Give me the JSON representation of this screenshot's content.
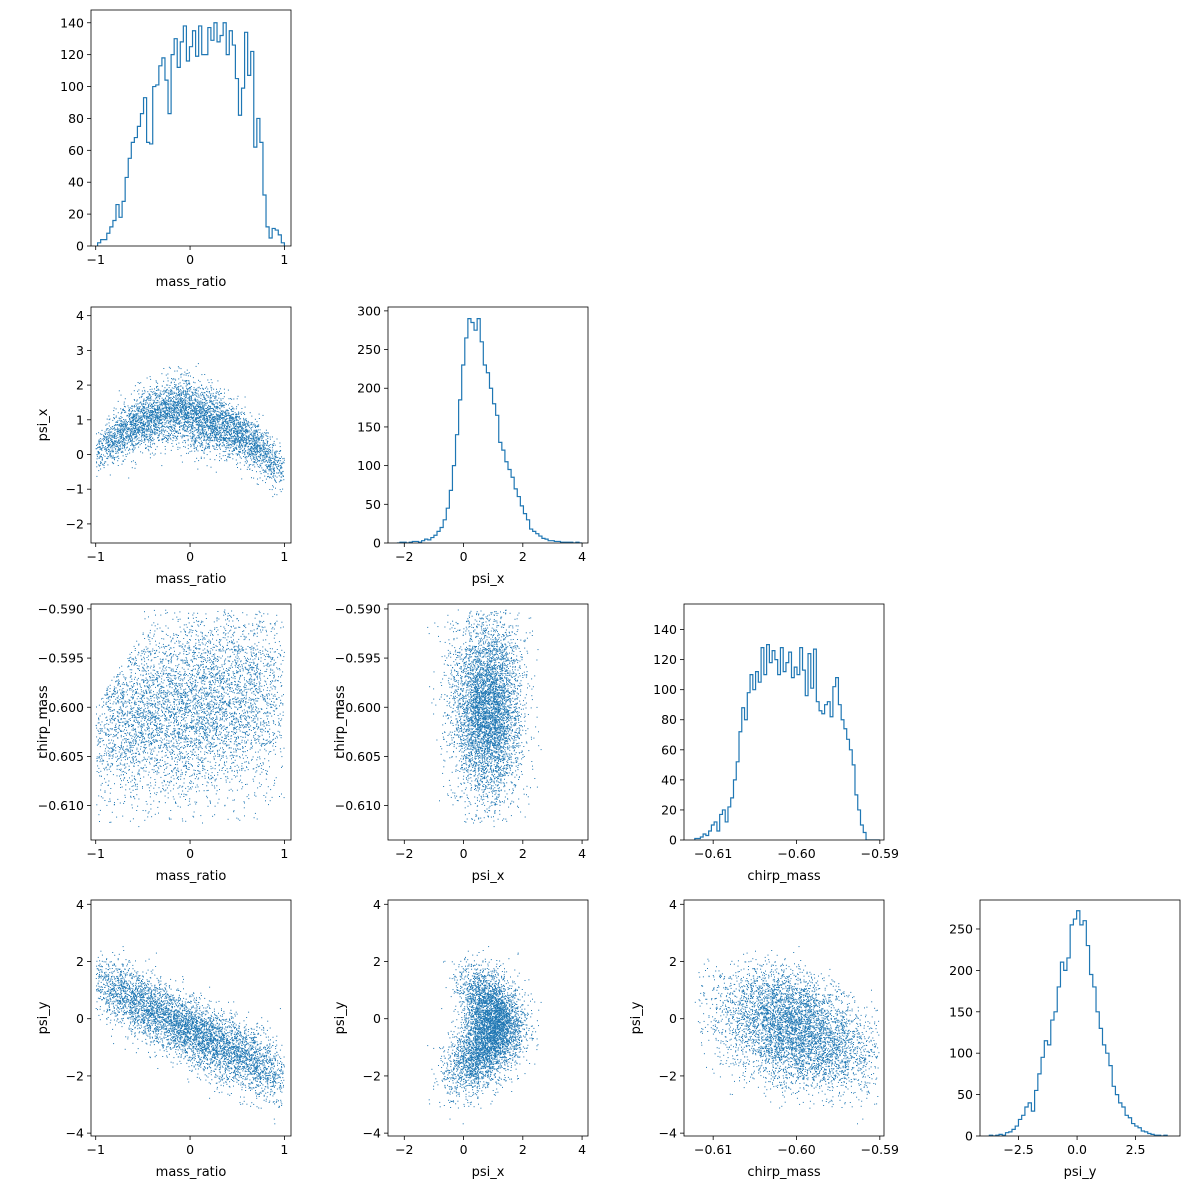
{
  "colors": {
    "series": "#1f77b4",
    "axes": "#000000"
  },
  "chart_data": [
    {
      "id": "hist-mass_ratio",
      "type": "histogram",
      "row": 0,
      "col": 0,
      "xlabel": "mass_ratio",
      "ylabel": "",
      "xlim": [
        -1.05,
        1.07
      ],
      "ylim": [
        0,
        148
      ],
      "xticks": [
        -1,
        0,
        1
      ],
      "xticklabels": [
        "−1",
        "0",
        "1"
      ],
      "yticks": [
        0,
        20,
        40,
        60,
        80,
        100,
        120,
        140
      ],
      "yticklabels": [
        "0",
        "20",
        "40",
        "60",
        "80",
        "100",
        "120",
        "140"
      ],
      "bin_edges_range": [
        -0.98,
        1.0
      ],
      "counts": [
        2,
        4,
        4,
        8,
        12,
        16,
        26,
        18,
        28,
        43,
        55,
        65,
        68,
        75,
        83,
        93,
        65,
        64,
        100,
        101,
        113,
        118,
        104,
        83,
        120,
        130,
        112,
        128,
        138,
        116,
        125,
        135,
        119,
        138,
        120,
        120,
        137,
        129,
        140,
        128,
        132,
        140,
        120,
        135,
        126,
        105,
        82,
        99,
        134,
        107,
        122,
        62,
        80,
        65,
        32,
        12,
        5,
        11,
        10,
        7,
        2
      ],
      "hist_x_range": [
        -0.98,
        0.99
      ]
    },
    {
      "id": "scatter-mass_ratio-psi_x",
      "type": "scatter",
      "row": 1,
      "col": 0,
      "xlabel": "mass_ratio",
      "ylabel": "psi_x",
      "xlim": [
        -1.05,
        1.07
      ],
      "ylim": [
        -2.55,
        4.25
      ],
      "xticks": [
        -1,
        0,
        1
      ],
      "xticklabels": [
        "−1",
        "0",
        "1"
      ],
      "yticks": [
        -2,
        -1,
        0,
        1,
        2,
        3,
        4
      ],
      "yticklabels": [
        "−2",
        "−1",
        "0",
        "1",
        "2",
        "3",
        "4"
      ],
      "approx_points": 5000
    },
    {
      "id": "hist-psi_x",
      "type": "histogram",
      "row": 1,
      "col": 1,
      "xlabel": "psi_x",
      "ylabel": "",
      "xlim": [
        -2.55,
        4.2
      ],
      "ylim": [
        0,
        305
      ],
      "xticks": [
        -2,
        0,
        2,
        4
      ],
      "xticklabels": [
        "−2",
        "0",
        "2",
        "4"
      ],
      "yticks": [
        0,
        50,
        100,
        150,
        200,
        250,
        300
      ],
      "yticklabels": [
        "0",
        "50",
        "100",
        "150",
        "200",
        "250",
        "300"
      ],
      "bin_edges_range": [
        -2.25,
        4.0
      ],
      "counts": [
        0,
        1,
        1,
        0,
        1,
        2,
        2,
        1,
        3,
        5,
        4,
        7,
        10,
        15,
        20,
        30,
        45,
        68,
        100,
        140,
        185,
        230,
        265,
        290,
        285,
        275,
        290,
        260,
        230,
        220,
        200,
        180,
        165,
        130,
        120,
        105,
        95,
        85,
        70,
        60,
        48,
        38,
        30,
        18,
        15,
        12,
        9,
        6,
        5,
        3,
        3,
        2,
        2,
        1,
        1,
        1,
        1,
        0,
        1,
        0
      ]
    },
    {
      "id": "scatter-mass_ratio-chirp_mass",
      "type": "scatter",
      "row": 2,
      "col": 0,
      "xlabel": "mass_ratio",
      "ylabel": "chirp_mass",
      "xlim": [
        -1.05,
        1.07
      ],
      "ylim": [
        -0.6135,
        -0.5895
      ],
      "xticks": [
        -1,
        0,
        1
      ],
      "xticklabels": [
        "−1",
        "0",
        "1"
      ],
      "yticks": [
        -0.61,
        -0.605,
        -0.6,
        -0.595,
        -0.59
      ],
      "yticklabels": [
        "−0.610",
        "−0.605",
        "−0.600",
        "−0.595",
        "−0.590"
      ],
      "approx_points": 5000
    },
    {
      "id": "scatter-psi_x-chirp_mass",
      "type": "scatter",
      "row": 2,
      "col": 1,
      "xlabel": "psi_x",
      "ylabel": "chirp_mass",
      "xlim": [
        -2.55,
        4.2
      ],
      "ylim": [
        -0.6135,
        -0.5895
      ],
      "xticks": [
        -2,
        0,
        2,
        4
      ],
      "xticklabels": [
        "−2",
        "0",
        "2",
        "4"
      ],
      "yticks": [
        -0.61,
        -0.605,
        -0.6,
        -0.595,
        -0.59
      ],
      "yticklabels": [
        "−0.610",
        "−0.605",
        "−0.600",
        "−0.595",
        "−0.590"
      ],
      "approx_points": 5000
    },
    {
      "id": "hist-chirp_mass",
      "type": "histogram",
      "row": 2,
      "col": 2,
      "xlabel": "chirp_mass",
      "ylabel": "",
      "xlim": [
        -0.6135,
        -0.5895
      ],
      "ylim": [
        0,
        157
      ],
      "xticks": [
        -0.61,
        -0.6,
        -0.59
      ],
      "xticklabels": [
        "−0.61",
        "−0.60",
        "−0.59"
      ],
      "yticks": [
        0,
        20,
        40,
        60,
        80,
        100,
        120,
        140
      ],
      "yticklabels": [
        "0",
        "20",
        "40",
        "60",
        "80",
        "100",
        "120",
        "140"
      ],
      "bin_edges_range": [
        -0.6122,
        -0.59
      ],
      "counts": [
        1,
        1,
        2,
        4,
        3,
        6,
        10,
        12,
        6,
        17,
        20,
        12,
        22,
        28,
        40,
        52,
        72,
        88,
        80,
        98,
        110,
        100,
        112,
        105,
        128,
        110,
        130,
        118,
        126,
        120,
        110,
        128,
        112,
        118,
        125,
        108,
        115,
        110,
        128,
        113,
        96,
        124,
        101,
        127,
        92,
        86,
        84,
        90,
        92,
        82,
        102,
        108,
        90,
        80,
        74,
        67,
        60,
        50,
        30,
        20,
        10,
        5,
        0,
        0,
        0,
        0,
        0
      ],
      "hist_x_range": [
        -0.6122,
        -0.59
      ]
    },
    {
      "id": "scatter-mass_ratio-psi_y",
      "type": "scatter",
      "row": 3,
      "col": 0,
      "xlabel": "mass_ratio",
      "ylabel": "psi_y",
      "xlim": [
        -1.05,
        1.07
      ],
      "ylim": [
        -4.1,
        4.15
      ],
      "xticks": [
        -1,
        0,
        1
      ],
      "xticklabels": [
        "−1",
        "0",
        "1"
      ],
      "yticks": [
        -4,
        -2,
        0,
        2,
        4
      ],
      "yticklabels": [
        "−4",
        "−2",
        "0",
        "2",
        "4"
      ],
      "approx_points": 5000
    },
    {
      "id": "scatter-psi_x-psi_y",
      "type": "scatter",
      "row": 3,
      "col": 1,
      "xlabel": "psi_x",
      "ylabel": "psi_y",
      "xlim": [
        -2.55,
        4.2
      ],
      "ylim": [
        -4.1,
        4.15
      ],
      "xticks": [
        -2,
        0,
        2,
        4
      ],
      "xticklabels": [
        "−2",
        "0",
        "2",
        "4"
      ],
      "yticks": [
        -4,
        -2,
        0,
        2,
        4
      ],
      "yticklabels": [
        "−4",
        "−2",
        "0",
        "2",
        "4"
      ],
      "approx_points": 5000
    },
    {
      "id": "scatter-chirp_mass-psi_y",
      "type": "scatter",
      "row": 3,
      "col": 2,
      "xlabel": "chirp_mass",
      "ylabel": "psi_y",
      "xlim": [
        -0.6135,
        -0.5895
      ],
      "ylim": [
        -4.1,
        4.15
      ],
      "xticks": [
        -0.61,
        -0.6,
        -0.59
      ],
      "xticklabels": [
        "−0.61",
        "−0.60",
        "−0.59"
      ],
      "yticks": [
        -4,
        -2,
        0,
        2,
        4
      ],
      "yticklabels": [
        "−4",
        "−2",
        "0",
        "2",
        "4"
      ],
      "approx_points": 5000
    },
    {
      "id": "hist-psi_y",
      "type": "histogram",
      "row": 3,
      "col": 3,
      "xlabel": "psi_y",
      "ylabel": "",
      "xlim": [
        -4.15,
        4.4
      ],
      "ylim": [
        0,
        285
      ],
      "xticks": [
        -2.5,
        0,
        2.5
      ],
      "xticklabels": [
        "−2.5",
        "0.0",
        "2.5"
      ],
      "yticks": [
        0,
        50,
        100,
        150,
        200,
        250
      ],
      "yticklabels": [
        "0",
        "50",
        "100",
        "150",
        "200",
        "250"
      ],
      "bin_edges_range": [
        -3.75,
        3.85
      ],
      "counts": [
        1,
        0,
        1,
        2,
        1,
        4,
        5,
        8,
        12,
        20,
        25,
        35,
        40,
        30,
        55,
        75,
        95,
        115,
        110,
        140,
        150,
        180,
        210,
        200,
        215,
        255,
        262,
        272,
        255,
        260,
        230,
        195,
        180,
        150,
        130,
        110,
        100,
        85,
        60,
        50,
        40,
        35,
        25,
        22,
        15,
        12,
        10,
        6,
        5,
        3,
        2,
        1,
        1,
        0,
        1
      ]
    }
  ],
  "layout_hint": "corner"
}
